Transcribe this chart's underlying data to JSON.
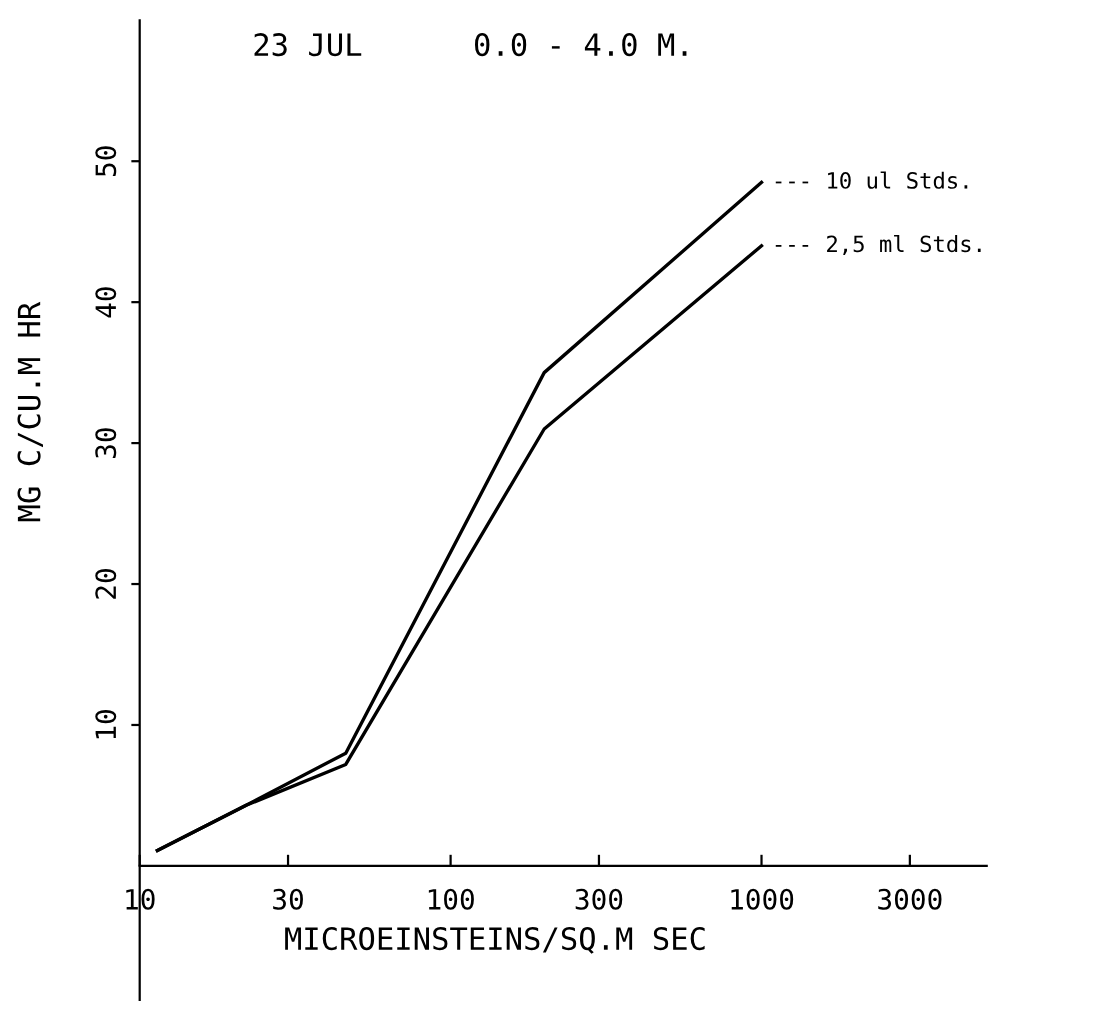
{
  "chart_data": {
    "type": "line",
    "title": "23 JUL      0.0 - 4.0 M.",
    "xlabel": "MICROEINSTEINS/SQ.M SEC",
    "ylabel": "MG C/CU.M HR",
    "log": "x",
    "xlim": [
      10,
      5300
    ],
    "xticks": [
      10,
      30,
      100,
      300,
      1000,
      3000
    ],
    "ylim": [
      -9.5,
      60
    ],
    "yticks": [
      10,
      20,
      30,
      40,
      50
    ],
    "grid": false,
    "legend": false,
    "series": [
      {
        "name": "--- 10 ul Stds.",
        "color": "#000000",
        "x": [
          11.4,
          22,
          46,
          200,
          1000
        ],
        "values": [
          1.1,
          4.3,
          8.0,
          35,
          48.5
        ]
      },
      {
        "name": "--- 2,5 ml Stds.",
        "color": "#000000",
        "x": [
          11.4,
          22,
          46,
          200,
          1000
        ],
        "values": [
          1.1,
          4.3,
          7.2,
          31,
          44
        ]
      }
    ]
  }
}
